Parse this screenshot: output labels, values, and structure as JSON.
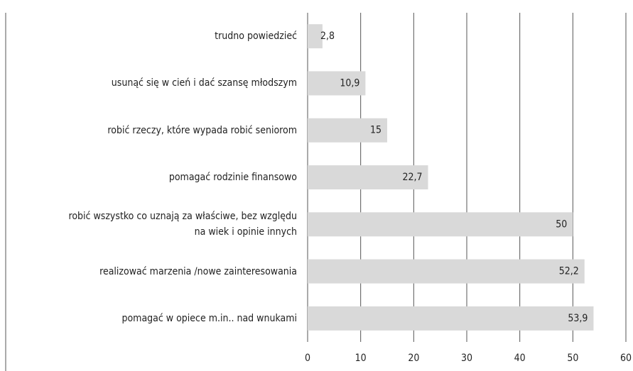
{
  "chart_data": {
    "type": "bar",
    "orientation": "horizontal",
    "categories": [
      "trudno powiedzieć",
      "usunąć się w cień i dać szansę młodszym",
      "robić rzeczy, które wypada robić seniorom",
      "pomagać rodzinie finansowo",
      "robić wszystko co uznają za właściwe, bez względu\nna wiek i opinie innych",
      "realizować marzenia /nowe zainteresowania",
      "pomagać w opiece m.in.. nad wnukami"
    ],
    "values": [
      2.8,
      10.9,
      15,
      22.7,
      50,
      52.2,
      53.9
    ],
    "value_labels": [
      "2,8",
      "10,9",
      "15",
      "22,7",
      "50",
      "52,2",
      "53,9"
    ],
    "color": "#d9d9d9",
    "xlim": [
      0,
      60
    ],
    "xticks": [
      0,
      10,
      20,
      30,
      40,
      50,
      60
    ],
    "grid": true
  }
}
